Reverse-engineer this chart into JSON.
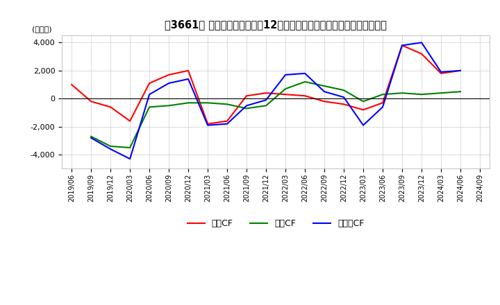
{
  "title": "、3661、 キャッシュフローの12か月移動合計の対前年同期増減額の推移",
  "ylabel": "(百万円)",
  "ylim": [
    -5000,
    4500
  ],
  "yticks": [
    -4000,
    -2000,
    0,
    2000,
    4000
  ],
  "x_labels": [
    "2019/06",
    "2019/09",
    "2019/12",
    "2020/03",
    "2020/06",
    "2020/09",
    "2020/12",
    "2021/03",
    "2021/06",
    "2021/09",
    "2021/12",
    "2022/03",
    "2022/06",
    "2022/09",
    "2022/12",
    "2023/03",
    "2023/06",
    "2023/09",
    "2023/12",
    "2024/03",
    "2024/06",
    "2024/09"
  ],
  "operating_cf": [
    1000,
    -200,
    -600,
    -1600,
    1100,
    1700,
    2000,
    -1800,
    -1600,
    200,
    400,
    300,
    200,
    -200,
    -400,
    -800,
    -300,
    3800,
    3200,
    1800,
    2000,
    null
  ],
  "investing_cf": [
    null,
    -2700,
    -3400,
    -3500,
    -600,
    -500,
    -300,
    -300,
    -400,
    -700,
    -500,
    700,
    1200,
    900,
    600,
    -200,
    300,
    400,
    300,
    400,
    500,
    null
  ],
  "free_cf": [
    null,
    -2800,
    -3600,
    -4300,
    300,
    1100,
    1400,
    -1900,
    -1800,
    -500,
    -100,
    1700,
    1800,
    500,
    100,
    -1900,
    -600,
    3800,
    4000,
    1900,
    2000,
    null
  ],
  "operating_color": "#ff0000",
  "investing_color": "#008000",
  "free_color": "#0000ff",
  "background_color": "#ffffff",
  "legend_labels": [
    "営業CF",
    "投資CF",
    "フリーCF"
  ]
}
